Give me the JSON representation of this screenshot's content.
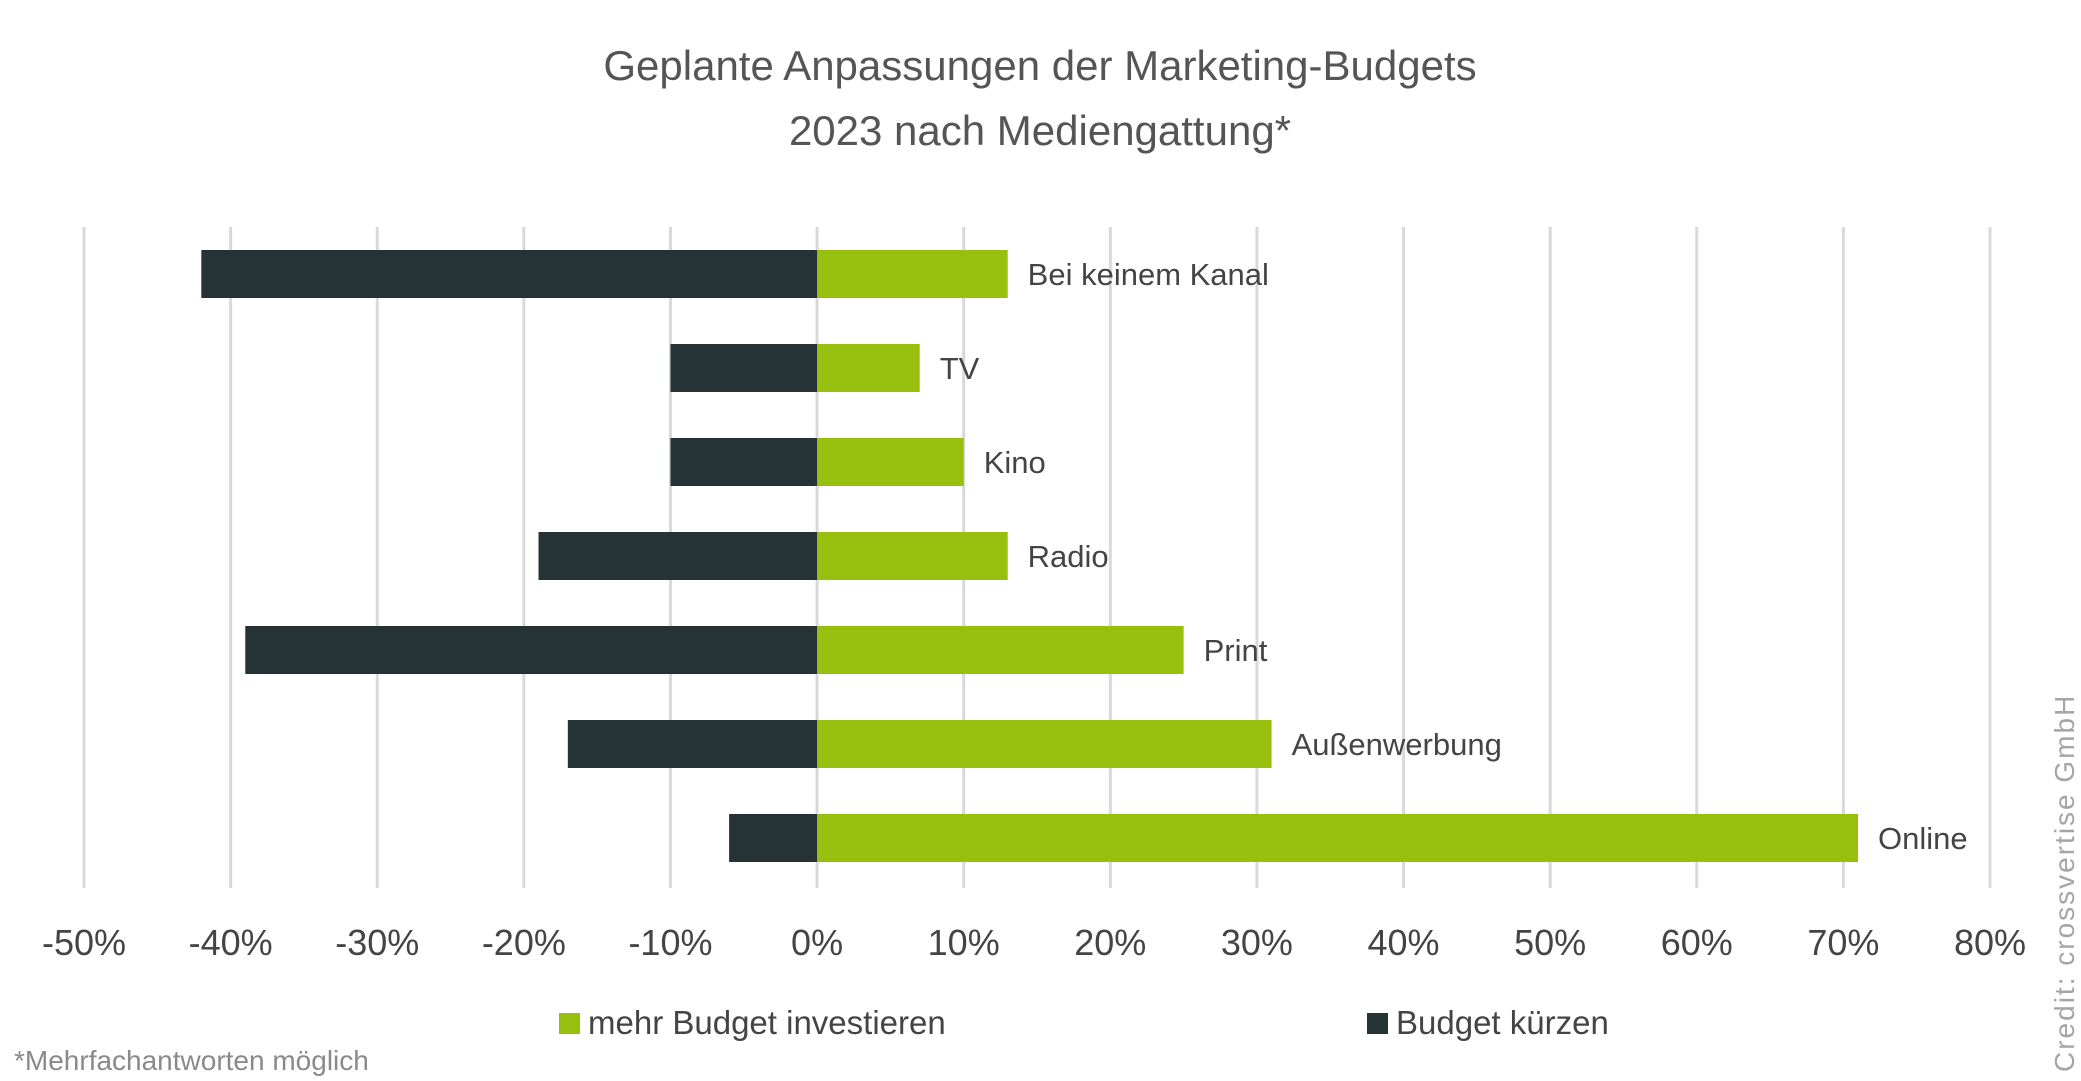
{
  "chart_data": {
    "type": "bar",
    "orientation": "horizontal",
    "stacked": "diverging",
    "title": "Geplante Anpassungen der Marketing-Budgets",
    "title_line2": "2023 nach Mediengattung*",
    "categories": [
      "Bei keinem Kanal",
      "TV",
      "Kino",
      "Radio",
      "Print",
      "Außenwerbung",
      "Online"
    ],
    "series": [
      {
        "name": "mehr Budget investieren",
        "color": "#97bf0d",
        "values": [
          13,
          7,
          10,
          13,
          25,
          31,
          71
        ]
      },
      {
        "name": "Budget kürzen",
        "color": "#263336",
        "values": [
          -42,
          -10,
          -10,
          -19,
          -39,
          -17,
          -6
        ]
      }
    ],
    "xlim": [
      -50,
      80
    ],
    "xticks": [
      -50,
      -40,
      -30,
      -20,
      -10,
      0,
      10,
      20,
      30,
      40,
      50,
      60,
      70,
      80
    ],
    "xtick_labels": [
      "-50%",
      "-40%",
      "-30%",
      "-20%",
      "-10%",
      "0%",
      "10%",
      "20%",
      "30%",
      "40%",
      "50%",
      "60%",
      "70%",
      "80%"
    ],
    "xlabel": "",
    "ylabel": "",
    "grid": "vertical",
    "grid_color": "#d9d9d9",
    "legend_position": "bottom",
    "footnote": "*Mehrfachantworten möglich",
    "credit": "Credit: crossvertise GmbH"
  }
}
